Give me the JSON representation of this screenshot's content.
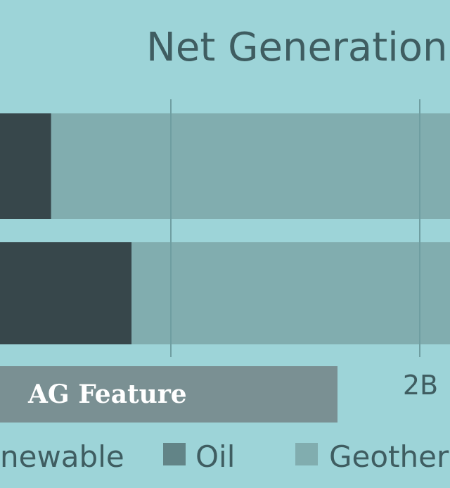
{
  "colors": {
    "background": "#9dd4d8",
    "renewable": "#37474b",
    "oil": "#628487",
    "geothermal": "#81adaf",
    "gridline": "#6f9ea1",
    "feature_band": "#7a9093",
    "text": "#3f5d61"
  },
  "chart_data": {
    "type": "bar",
    "orientation": "horizontal",
    "stacked": true,
    "title": "Net Generation by",
    "categories": [
      "",
      ""
    ],
    "series": [
      {
        "name": "newable",
        "color": "#37474b",
        "values": [
          0.07,
          0.18
        ]
      },
      {
        "name": "Geotherm",
        "color": "#81adaf",
        "values": [
          1.0,
          0.89
        ]
      }
    ],
    "x_ticks": [
      "2B"
    ],
    "grid": true,
    "legend_position": "bottom",
    "legend": [
      "newable",
      "Oil",
      "Geotherm"
    ]
  },
  "annotation": {
    "label": "AG Feature"
  }
}
